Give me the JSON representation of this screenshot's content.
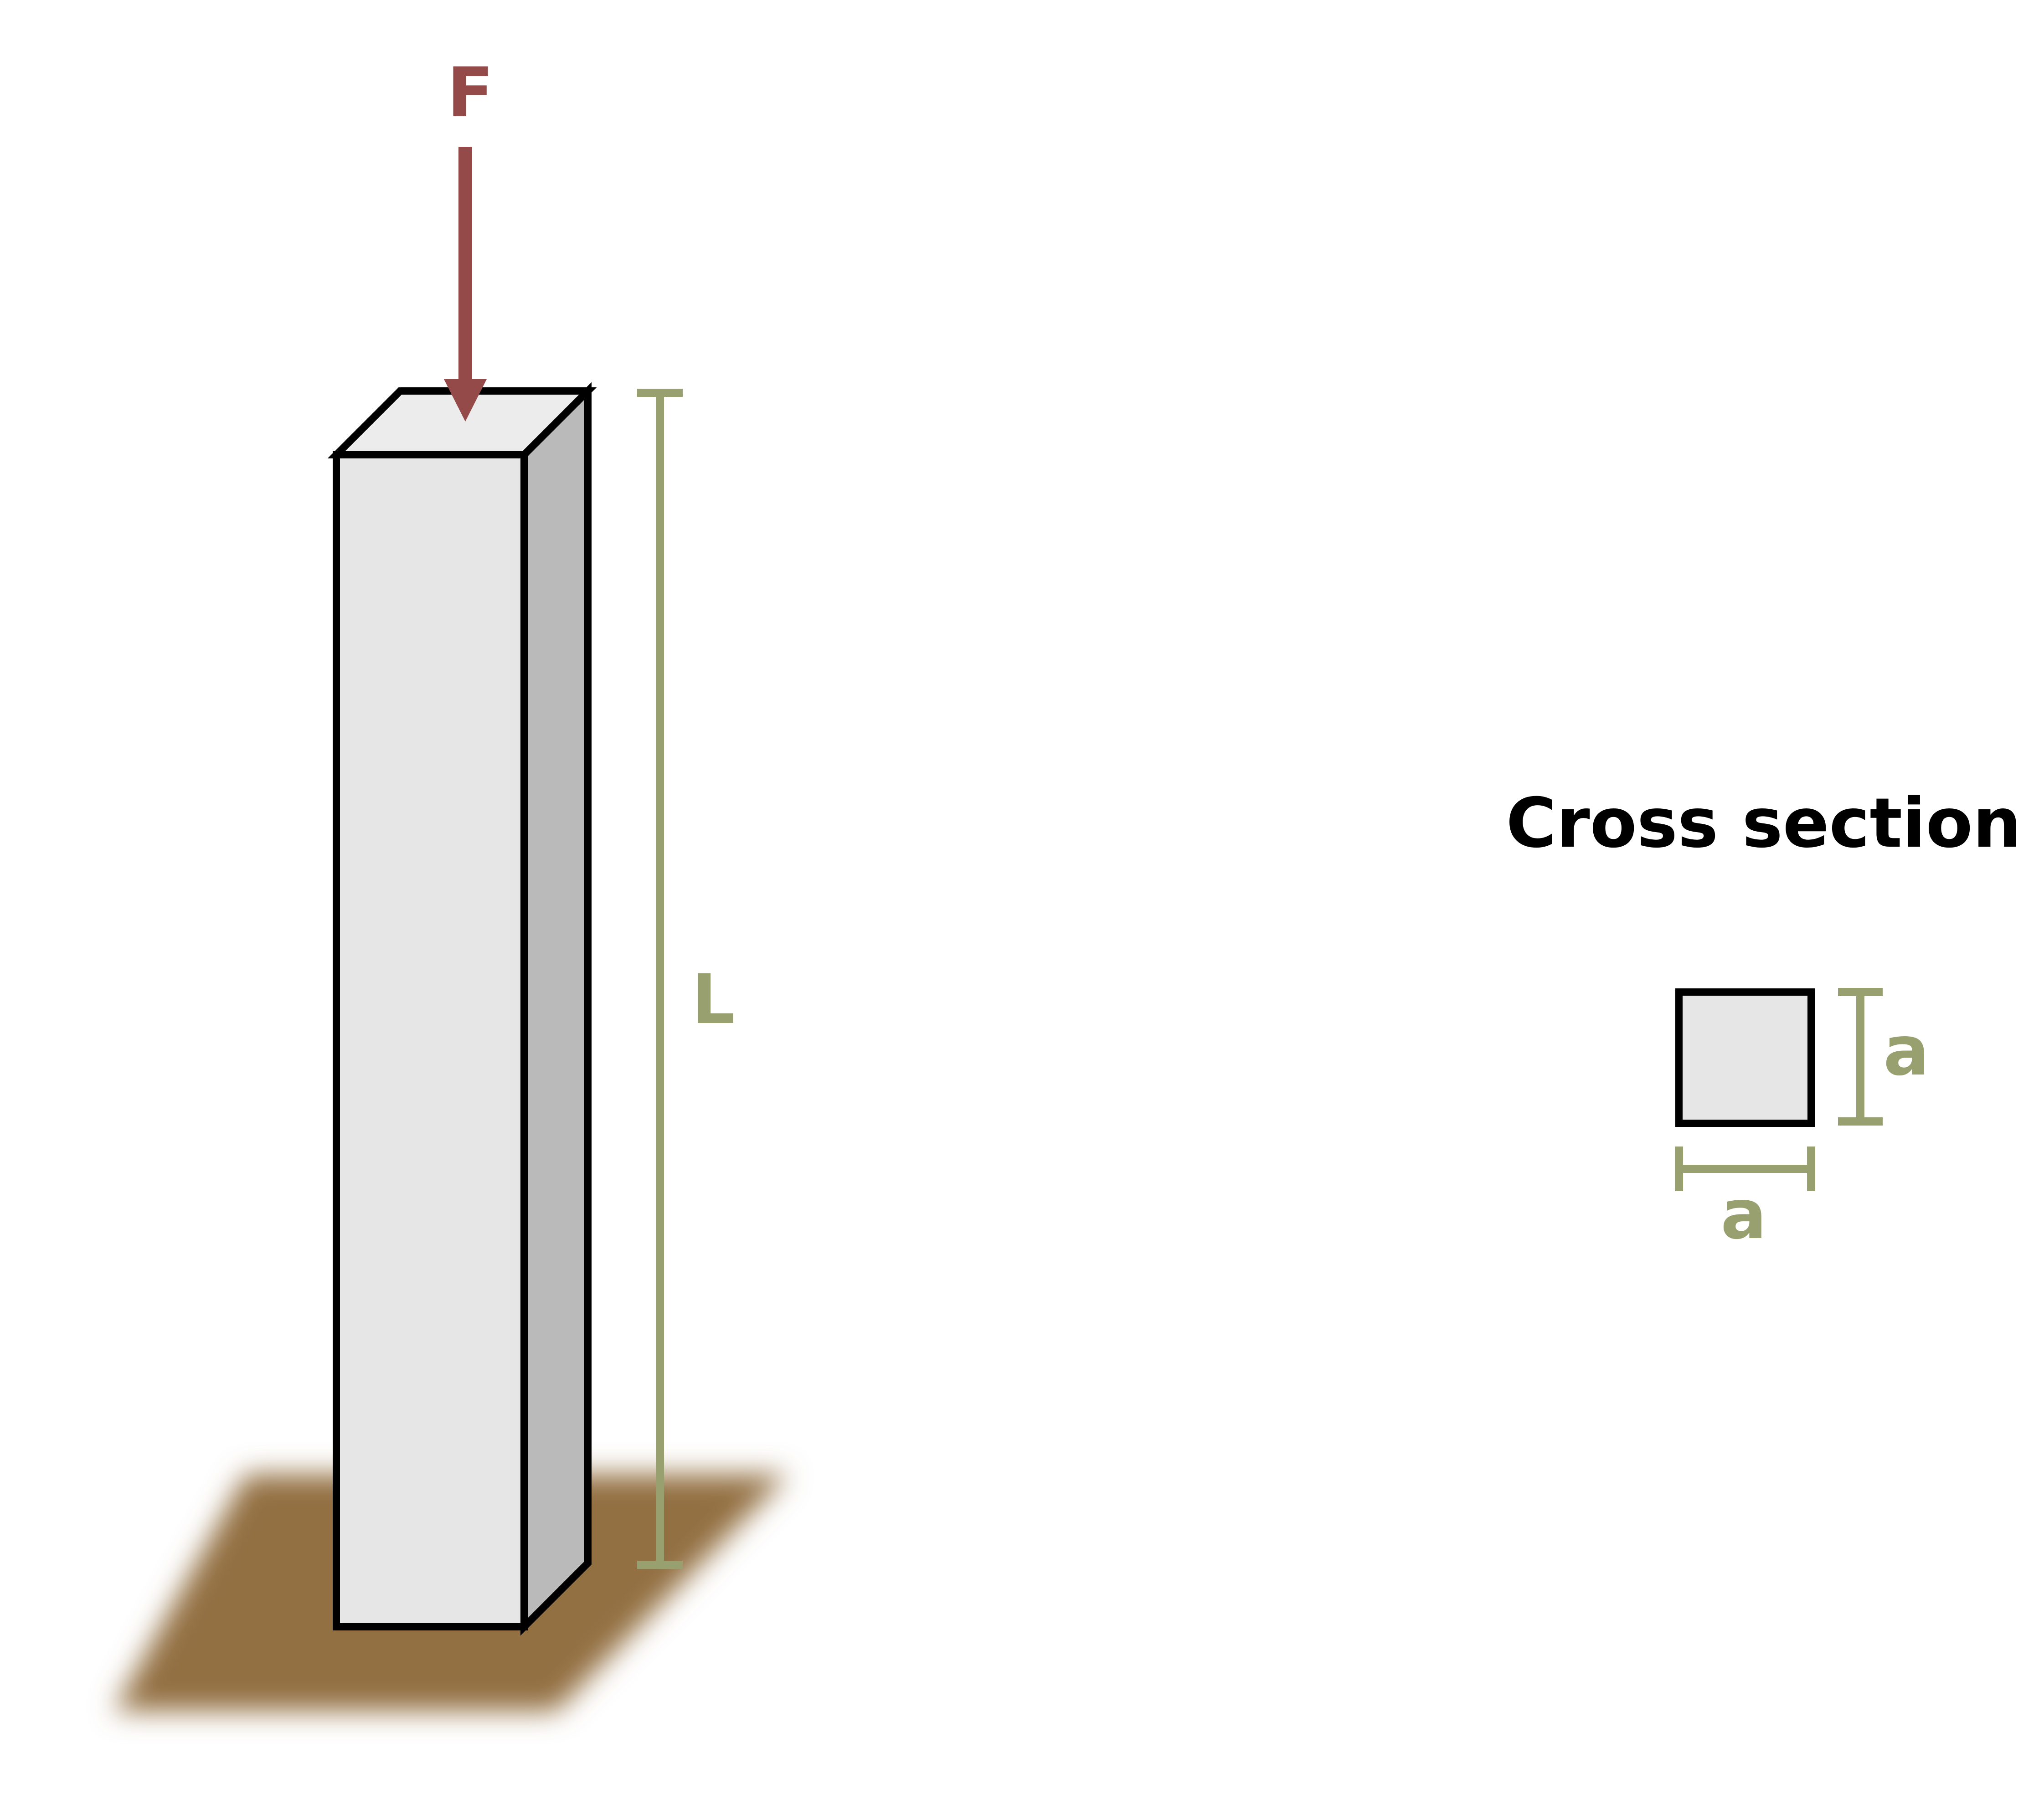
{
  "labels": {
    "force": "F",
    "length": "L",
    "cross_section_title": "Cross section",
    "side_vertical": "a",
    "side_horizontal": "a"
  },
  "colors": {
    "force": "#944A48",
    "dimension": "#99A070",
    "column_front": "#E6E6E6",
    "column_side": "#BABABA",
    "column_top": "#ECECEC",
    "outline": "#000000",
    "ground": "#936F43",
    "title": "#000000"
  }
}
